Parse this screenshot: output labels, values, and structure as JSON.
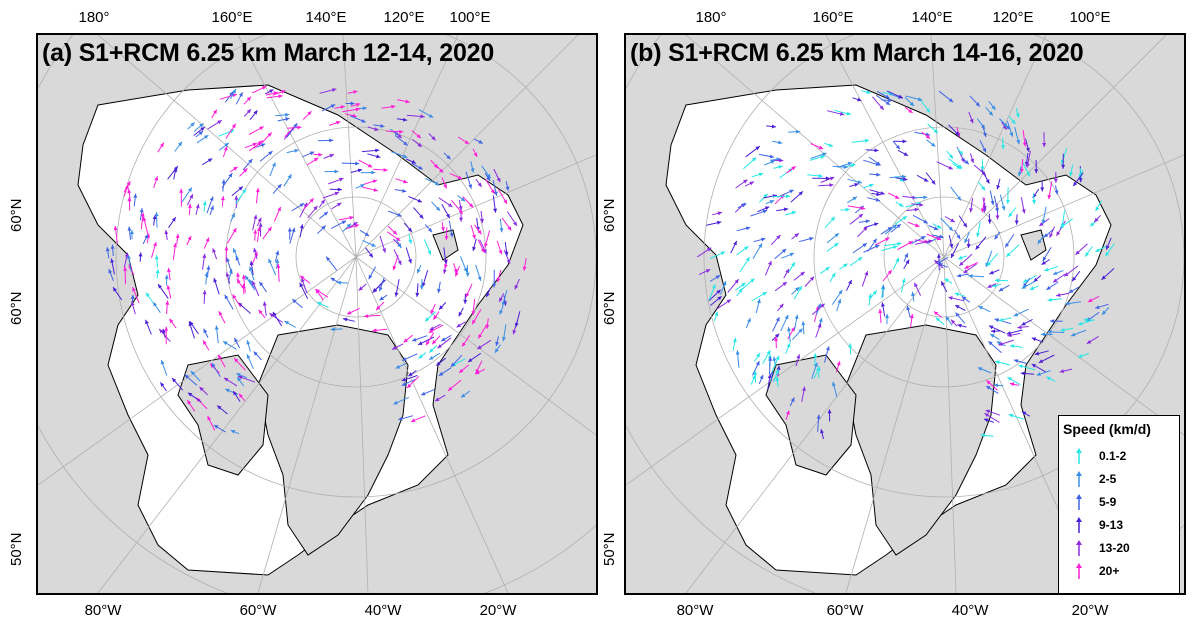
{
  "panels": [
    {
      "title": "(a) S1+RCM 6.25 km March 12-14, 2020",
      "top_lon_labels": [
        "180°",
        "160°E",
        "140°E",
        "120°E",
        "100°E"
      ],
      "bottom_lon_labels": [
        "80°W",
        "60°W",
        "40°W",
        "20°W"
      ],
      "lat_labels": [
        "60°N",
        "60°N",
        "50°N"
      ]
    },
    {
      "title": "(b) S1+RCM 6.25 km March 14-16, 2020",
      "top_lon_labels": [
        "180°",
        "160°E",
        "140°E",
        "120°E",
        "100°E"
      ],
      "bottom_lon_labels": [
        "80°W",
        "60°W",
        "40°W",
        "20°W"
      ],
      "lat_labels": [
        "60°N",
        "60°N",
        "50°N"
      ]
    }
  ],
  "legend": {
    "title": "Speed (km/d)",
    "items": [
      {
        "label": "0.1-2",
        "color": "#26e6e6"
      },
      {
        "label": "2-5",
        "color": "#3a8ee6"
      },
      {
        "label": "5-9",
        "color": "#3f63e6"
      },
      {
        "label": "9-13",
        "color": "#4b1fd6"
      },
      {
        "label": "13-20",
        "color": "#8a2be2"
      },
      {
        "label": "20+",
        "color": "#ff1fd8"
      }
    ]
  },
  "colors": {
    "land": "#d9d9d9",
    "ocean_ice": "#ffffff",
    "grid": "#b0b0b0",
    "coast": "#000000"
  }
}
